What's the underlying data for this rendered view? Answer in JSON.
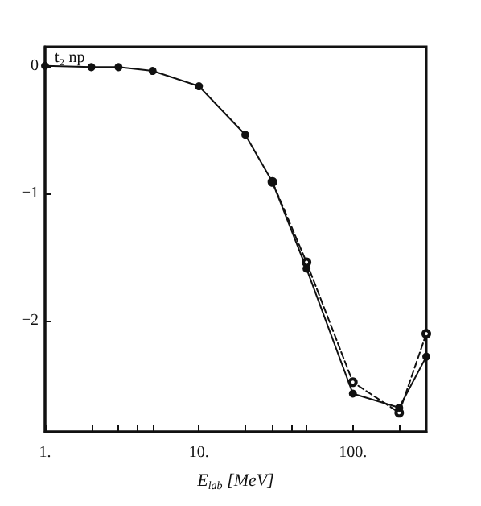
{
  "chart_data": {
    "type": "line",
    "ylabel": "t₂ np",
    "xlabel": "E$_{lab}$ [MeV]",
    "log": "x",
    "x": [
      1,
      2,
      3,
      5,
      10,
      20,
      30,
      50,
      100,
      200,
      300
    ],
    "series": [
      {
        "color": "#111111",
        "line_style": "solid",
        "marker": "circle",
        "values": [
          0,
          -0.01,
          -0.01,
          -0.04,
          -0.16,
          -0.54,
          -0.91,
          -1.59,
          -2.57,
          -2.68,
          -2.28
        ]
      },
      {
        "color": "#111111",
        "line_style": "dashed",
        "marker": "circle",
        "values": [
          null,
          null,
          null,
          null,
          null,
          null,
          -0.91,
          -1.54,
          -2.48,
          -2.72,
          -2.1
        ]
      }
    ],
    "xlim": [
      1,
      300
    ],
    "xticks": [
      {
        "value": 1,
        "label": "1."
      },
      {
        "value": 2,
        "label": null
      },
      {
        "value": 3,
        "label": null
      },
      {
        "value": 4,
        "label": null
      },
      {
        "value": 5,
        "label": null
      },
      {
        "value": 10,
        "label": "10."
      },
      {
        "value": 20,
        "label": null
      },
      {
        "value": 30,
        "label": null
      },
      {
        "value": 40,
        "label": null
      },
      {
        "value": 50,
        "label": null
      },
      {
        "value": 100,
        "label": "100."
      },
      {
        "value": 200,
        "label": null
      }
    ],
    "ylim": [
      -2.87,
      0.15
    ],
    "yticks": [
      0,
      -1,
      -2
    ],
    "grid": false
  }
}
